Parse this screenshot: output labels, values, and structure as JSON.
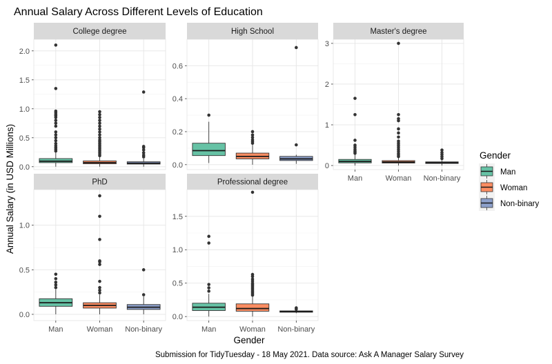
{
  "chart_data": {
    "type": "boxplot",
    "title": "Annual Salary Across Different Levels of Education",
    "xlabel": "Gender",
    "ylabel": "Annual Salary (in USD Millions)",
    "caption": "Submission for TidyTuesday - 18 May 2021. Data source: Ask A Manager Salary Survey",
    "categories": [
      "Man",
      "Woman",
      "Non-binary"
    ],
    "legend": {
      "title": "Gender",
      "position": "right",
      "entries": [
        {
          "name": "Man",
          "color": "#66c2a5"
        },
        {
          "name": "Woman",
          "color": "#fc8d62"
        },
        {
          "name": "Non-binary",
          "color": "#8da0cb"
        }
      ]
    },
    "facets": [
      {
        "label": "College degree",
        "ylim": [
          -0.05,
          2.2
        ],
        "yticks": [
          0.0,
          0.5,
          1.0,
          1.5,
          2.0
        ],
        "ytick_labels": [
          "0.0",
          "0.5",
          "1.0",
          "1.5",
          "2.0"
        ],
        "show_x_ticks": false,
        "boxes": [
          {
            "group": "Man",
            "whisker_low": 0.0,
            "q1": 0.07,
            "median": 0.095,
            "q3": 0.14,
            "whisker_high": 0.25,
            "outliers": [
              0.27,
              0.3,
              0.33,
              0.36,
              0.4,
              0.45,
              0.5,
              0.55,
              0.6,
              0.7,
              0.75,
              0.8,
              0.85,
              0.88,
              0.9,
              0.93,
              0.96,
              1.35,
              2.1
            ]
          },
          {
            "group": "Woman",
            "whisker_low": 0.0,
            "q1": 0.05,
            "median": 0.07,
            "q3": 0.1,
            "whisker_high": 0.17,
            "outliers": [
              0.19,
              0.22,
              0.25,
              0.28,
              0.31,
              0.34,
              0.37,
              0.4,
              0.43,
              0.46,
              0.5,
              0.55,
              0.6,
              0.65,
              0.7,
              0.75,
              0.8,
              0.85,
              0.9,
              0.95
            ]
          },
          {
            "group": "Non-binary",
            "whisker_low": 0.0,
            "q1": 0.045,
            "median": 0.06,
            "q3": 0.085,
            "whisker_high": 0.14,
            "outliers": [
              0.17,
              0.2,
              0.24,
              0.29,
              0.33,
              0.35,
              1.29
            ]
          }
        ]
      },
      {
        "label": "High School",
        "ylim": [
          -0.03,
          0.76
        ],
        "yticks": [
          0.0,
          0.2,
          0.4,
          0.6
        ],
        "ytick_labels": [
          "0.0",
          "0.2",
          "0.4",
          "0.6"
        ],
        "show_x_ticks": false,
        "boxes": [
          {
            "group": "Man",
            "whisker_low": 0.01,
            "q1": 0.055,
            "median": 0.085,
            "q3": 0.13,
            "whisker_high": 0.26,
            "outliers": [
              0.3
            ]
          },
          {
            "group": "Woman",
            "whisker_low": 0.0,
            "q1": 0.035,
            "median": 0.05,
            "q3": 0.07,
            "whisker_high": 0.12,
            "outliers": [
              0.13,
              0.14,
              0.15,
              0.165,
              0.18,
              0.2
            ]
          },
          {
            "group": "Non-binary",
            "whisker_low": 0.005,
            "q1": 0.025,
            "median": 0.035,
            "q3": 0.05,
            "whisker_high": 0.06,
            "outliers": [
              0.12,
              0.71
            ]
          }
        ]
      },
      {
        "label": "Master's degree",
        "ylim": [
          -0.1,
          3.1
        ],
        "yticks": [
          0,
          1,
          2,
          3
        ],
        "ytick_labels": [
          "0",
          "1",
          "2",
          "3"
        ],
        "show_x_ticks": true,
        "boxes": [
          {
            "group": "Man",
            "whisker_low": 0.0,
            "q1": 0.065,
            "median": 0.1,
            "q3": 0.15,
            "whisker_high": 0.28,
            "outliers": [
              0.3,
              0.33,
              0.36,
              0.4,
              0.45,
              0.5,
              0.62,
              1.25,
              1.65
            ]
          },
          {
            "group": "Woman",
            "whisker_low": 0.0,
            "q1": 0.06,
            "median": 0.085,
            "q3": 0.12,
            "whisker_high": 0.2,
            "outliers": [
              0.22,
              0.26,
              0.3,
              0.35,
              0.4,
              0.45,
              0.5,
              0.55,
              0.6,
              0.7,
              0.8,
              0.9,
              1.1,
              1.15,
              1.25,
              3.0
            ]
          },
          {
            "group": "Non-binary",
            "whisker_low": 0.0,
            "q1": 0.05,
            "median": 0.07,
            "q3": 0.09,
            "whisker_high": 0.13,
            "outliers": [
              0.17,
              0.22,
              0.27,
              0.32,
              0.38
            ]
          }
        ]
      },
      {
        "label": "PhD",
        "ylim": [
          -0.07,
          1.4
        ],
        "yticks": [
          0.0,
          0.5,
          1.0
        ],
        "ytick_labels": [
          "0.0",
          "0.5",
          "1.0"
        ],
        "show_x_ticks": true,
        "boxes": [
          {
            "group": "Man",
            "whisker_low": 0.0,
            "q1": 0.09,
            "median": 0.13,
            "q3": 0.175,
            "whisker_high": 0.28,
            "outliers": [
              0.3,
              0.33,
              0.36,
              0.4,
              0.45
            ]
          },
          {
            "group": "Woman",
            "whisker_low": 0.0,
            "q1": 0.07,
            "median": 0.1,
            "q3": 0.13,
            "whisker_high": 0.22,
            "outliers": [
              0.24,
              0.27,
              0.3,
              0.37,
              0.56,
              0.59,
              0.6,
              0.84,
              1.1,
              1.33
            ]
          },
          {
            "group": "Non-binary",
            "whisker_low": 0.0,
            "q1": 0.055,
            "median": 0.08,
            "q3": 0.11,
            "whisker_high": 0.2,
            "outliers": [
              0.22,
              0.5
            ]
          }
        ]
      },
      {
        "label": "Professional degree",
        "ylim": [
          -0.06,
          1.9
        ],
        "yticks": [
          0.0,
          0.5,
          1.0,
          1.5
        ],
        "ytick_labels": [
          "0.0",
          "0.5",
          "1.0",
          "1.5"
        ],
        "show_x_ticks": true,
        "boxes": [
          {
            "group": "Man",
            "whisker_low": 0.0,
            "q1": 0.09,
            "median": 0.14,
            "q3": 0.2,
            "whisker_high": 0.34,
            "outliers": [
              0.38,
              0.43,
              0.48,
              1.1,
              1.2
            ]
          },
          {
            "group": "Woman",
            "whisker_low": 0.0,
            "q1": 0.08,
            "median": 0.12,
            "q3": 0.19,
            "whisker_high": 0.3,
            "outliers": [
              0.32,
              0.34,
              0.36,
              0.38,
              0.4,
              0.42,
              0.44,
              0.46,
              0.48,
              0.5,
              0.53,
              0.56,
              0.6,
              0.63,
              1.86
            ]
          },
          {
            "group": "Non-binary",
            "whisker_low": 0.05,
            "q1": 0.065,
            "median": 0.075,
            "q3": 0.085,
            "whisker_high": 0.1,
            "outliers": [
              0.11,
              0.13
            ]
          }
        ]
      }
    ]
  }
}
